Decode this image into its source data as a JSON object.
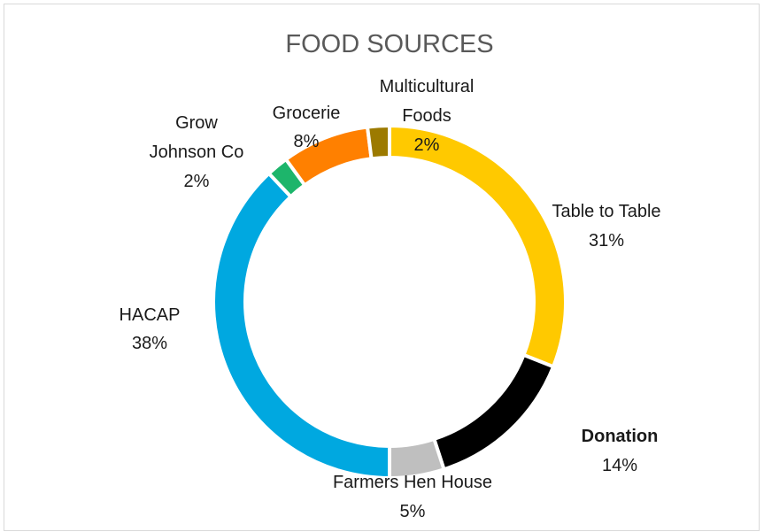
{
  "chart_data": {
    "type": "pie",
    "variant": "doughnut",
    "title": "FOOD SOURCES",
    "slices": [
      {
        "name": "Table to Table",
        "pct_label": "31%",
        "value": 31,
        "color": "#ffc900",
        "name_bold": false
      },
      {
        "name": "Donation",
        "pct_label": "14%",
        "value": 14,
        "color": "#000000",
        "name_bold": true
      },
      {
        "name": "Farmers Hen House",
        "pct_label": "5%",
        "value": 5,
        "color": "#bfbfbf",
        "name_bold": false
      },
      {
        "name": "HACAP",
        "pct_label": "38%",
        "value": 38,
        "color": "#00a8e0",
        "name_bold": false
      },
      {
        "name": "Grow Johnson Co",
        "pct_label": "2%",
        "value": 2,
        "color": "#1db56b",
        "name_bold": false
      },
      {
        "name": "Grocerie",
        "pct_label": "8%",
        "value": 8,
        "color": "#ff8000",
        "name_bold": false
      },
      {
        "name": "Multicultural Foods",
        "pct_label": "2%",
        "value": 2,
        "color": "#9c7a00",
        "name_bold": false
      }
    ],
    "legend": "none"
  }
}
